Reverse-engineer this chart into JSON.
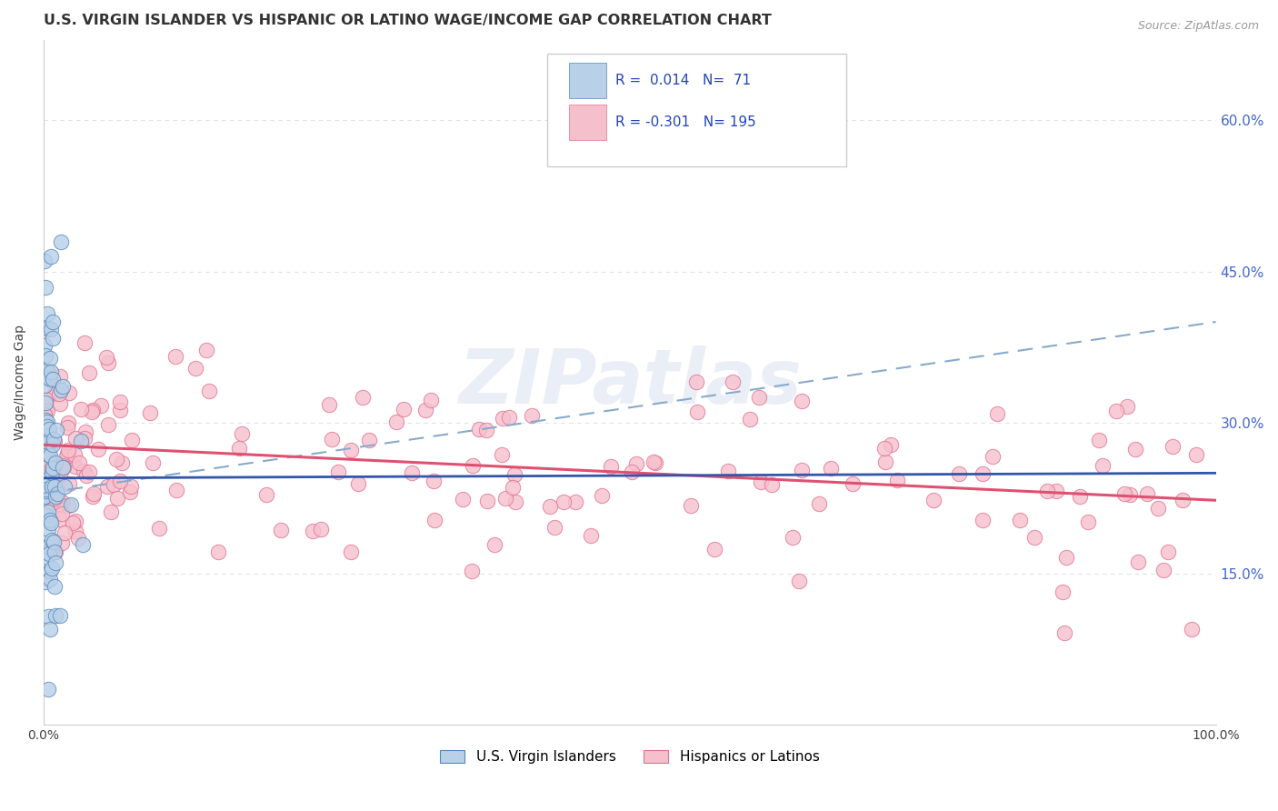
{
  "title": "U.S. VIRGIN ISLANDER VS HISPANIC OR LATINO WAGE/INCOME GAP CORRELATION CHART",
  "source_text": "Source: ZipAtlas.com",
  "ylabel": "Wage/Income Gap",
  "xlim": [
    0.0,
    1.0
  ],
  "ylim": [
    0.0,
    0.68
  ],
  "yticks": [
    0.15,
    0.3,
    0.45,
    0.6
  ],
  "ytick_labels": [
    "15.0%",
    "30.0%",
    "45.0%",
    "60.0%"
  ],
  "xtick_labels": [
    "0.0%",
    "",
    "",
    "",
    "",
    "",
    "",
    "",
    "",
    "",
    "100.0%"
  ],
  "blue_color": "#b8d0e8",
  "blue_edge_color": "#5588bb",
  "pink_color": "#f5c0cc",
  "pink_edge_color": "#e07090",
  "trend_blue_color": "#3355aa",
  "trend_pink_color": "#e05070",
  "trend_dashed_color": "#88aacc",
  "R_blue": 0.014,
  "N_blue": 71,
  "R_pink": -0.301,
  "N_pink": 195,
  "legend_labels": [
    "U.S. Virgin Islanders",
    "Hispanics or Latinos"
  ],
  "watermark": "ZIPatlas",
  "background_color": "#ffffff",
  "grid_color": "#e0e0ee",
  "title_fontsize": 12,
  "axis_fontsize": 10
}
